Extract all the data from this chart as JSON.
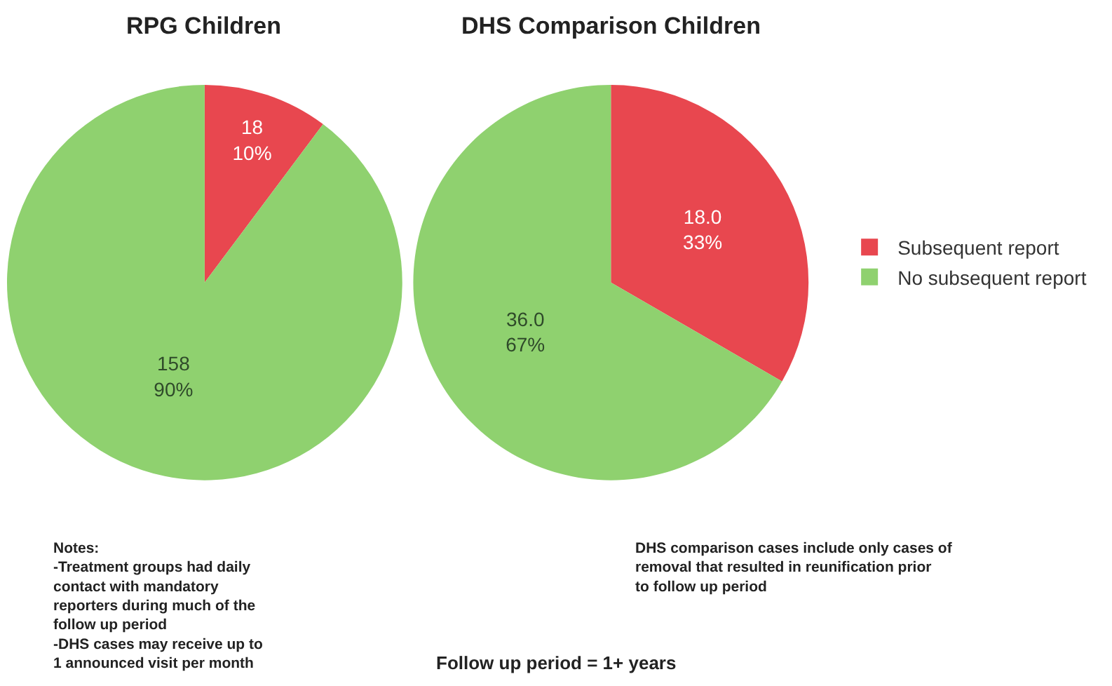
{
  "chart_data": [
    {
      "type": "pie",
      "title": "RPG Children",
      "categories": [
        null,
        null
      ],
      "values": [
        18,
        158
      ],
      "colors": [
        "#e8474f",
        "#8fd16f"
      ],
      "value_labels": [
        "18\n10%",
        "158\n90%"
      ],
      "annotations": [
        "Notes:\n-Treatment groups had daily\ncontact with mandatory\nreporters during much of the\nfollow up period\n-DHS cases may receive up to\n1 announced visit per month"
      ]
    },
    {
      "type": "pie",
      "title": "DHS Comparison Children",
      "categories": [
        "Subsequent report",
        "No subsequent report"
      ],
      "values": [
        18.0,
        36.0
      ],
      "colors": [
        "#e8474f",
        "#8fd16f"
      ],
      "value_labels": [
        "18.0\n33%",
        "36.0\n67%"
      ],
      "legend": "right",
      "annotations": [
        "DHS comparison cases include only cases of\nremoval that resulted in reunification prior\nto follow up period",
        "Follow up period = 1+ years"
      ]
    }
  ]
}
